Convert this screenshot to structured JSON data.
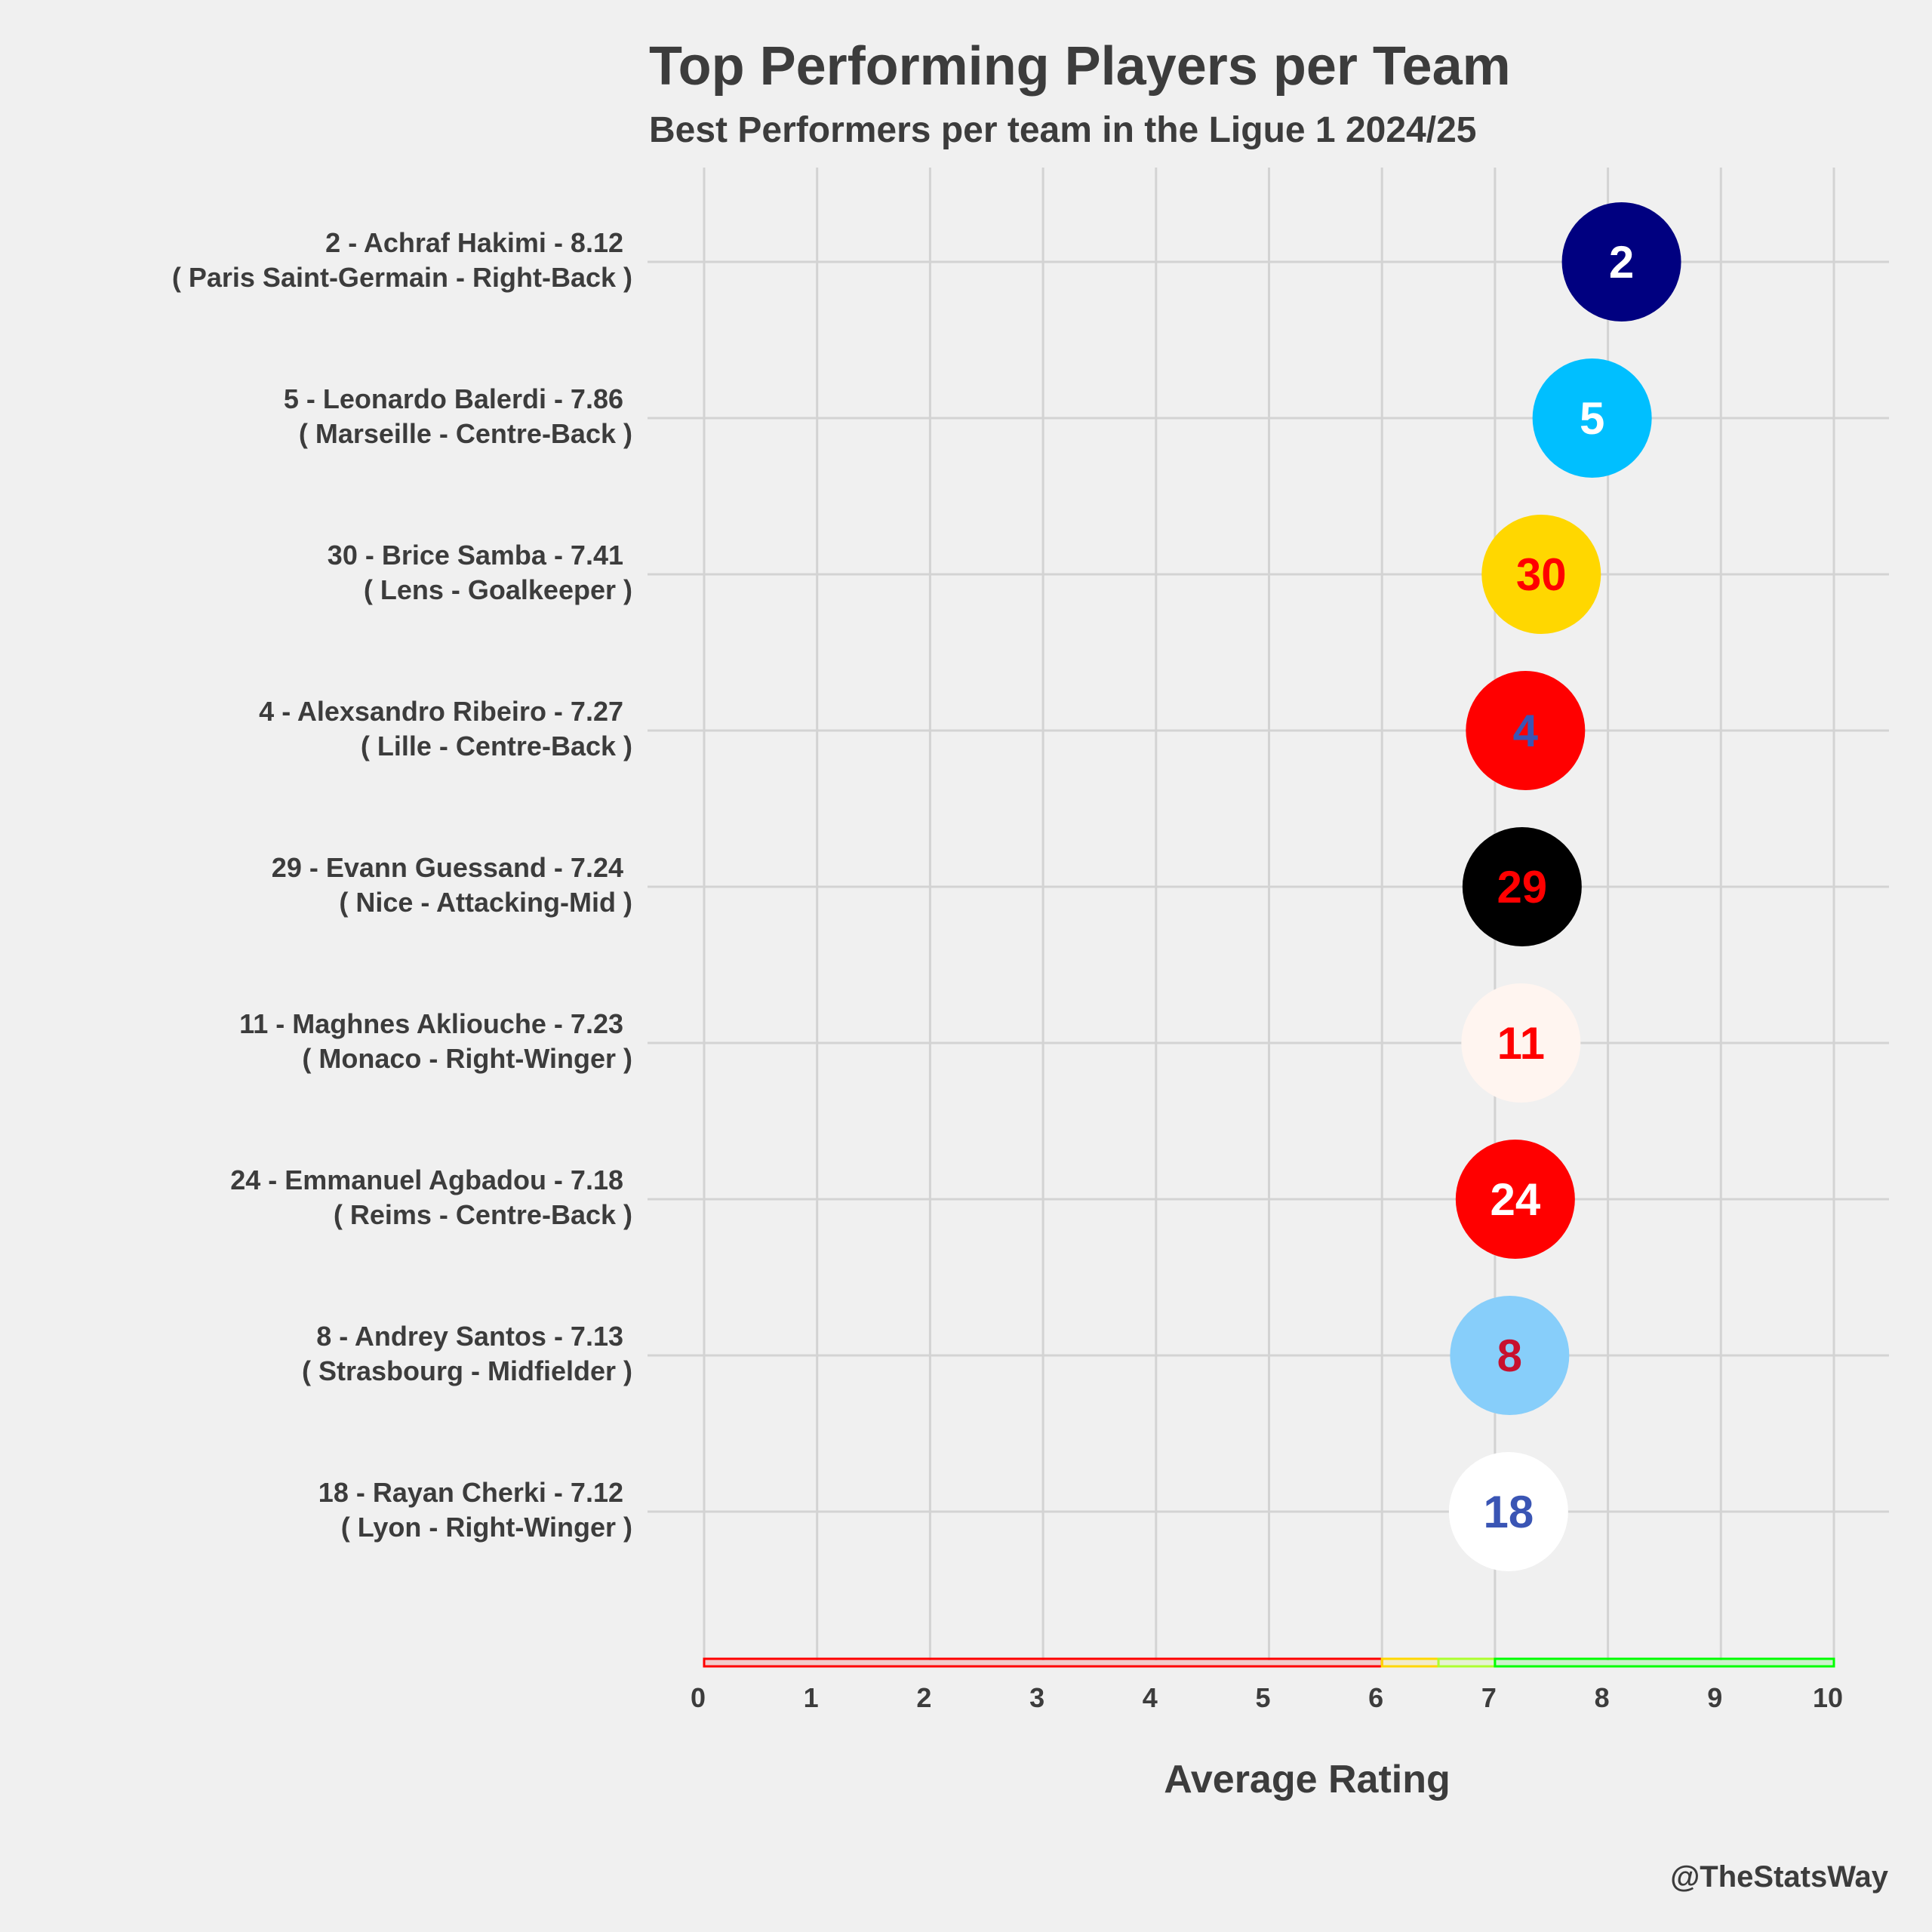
{
  "chart_data": {
    "type": "scatter",
    "title": "Top Performing Players per Team",
    "subtitle": "Best Performers per team in the Ligue 1 2024/25",
    "xlabel": "Average Rating",
    "xlim": [
      0,
      10
    ],
    "xticks": [
      0,
      1,
      2,
      3,
      4,
      5,
      6,
      7,
      8,
      9,
      10
    ],
    "grid": true,
    "credit": "@TheStatsWay",
    "rating_bands": [
      {
        "from": 0,
        "to": 6,
        "color": "#ff0000"
      },
      {
        "from": 6,
        "to": 6.5,
        "color": "#ffd700"
      },
      {
        "from": 6.5,
        "to": 7,
        "color": "#adff2f"
      },
      {
        "from": 7,
        "to": 10,
        "color": "#00ff00"
      }
    ],
    "players": [
      {
        "number": "2",
        "line1": "2 - Achraf Hakimi - 8.12",
        "line2": "( Paris Saint-Germain - Right-Back )",
        "rating": 8.12,
        "fill": "#000080",
        "text_color": "#ffffff"
      },
      {
        "number": "5",
        "line1": "5 - Leonardo Balerdi - 7.86",
        "line2": "( Marseille - Centre-Back )",
        "rating": 7.86,
        "fill": "#00bfff",
        "text_color": "#ffffff"
      },
      {
        "number": "30",
        "line1": "30 - Brice Samba - 7.41",
        "line2": "( Lens - Goalkeeper )",
        "rating": 7.41,
        "fill": "#ffd700",
        "text_color": "#ff0000"
      },
      {
        "number": "4",
        "line1": "4 - Alexsandro Ribeiro - 7.27",
        "line2": "( Lille - Centre-Back )",
        "rating": 7.27,
        "fill": "#ff0000",
        "text_color": "#3a55b4"
      },
      {
        "number": "29",
        "line1": "29 - Evann Guessand - 7.24",
        "line2": "( Nice - Attacking-Mid )",
        "rating": 7.24,
        "fill": "#000000",
        "text_color": "#ff0000"
      },
      {
        "number": "11",
        "line1": "11 - Maghnes Akliouche - 7.23",
        "line2": "( Monaco - Right-Winger )",
        "rating": 7.23,
        "fill": "#fff5f0",
        "text_color": "#ff0000"
      },
      {
        "number": "24",
        "line1": "24 - Emmanuel Agbadou - 7.18",
        "line2": "( Reims - Centre-Back )",
        "rating": 7.18,
        "fill": "#ff0000",
        "text_color": "#ffffff"
      },
      {
        "number": "8",
        "line1": "8 - Andrey Santos - 7.13",
        "line2": "( Strasbourg - Midfielder )",
        "rating": 7.13,
        "fill": "#87cefa",
        "text_color": "#c8102e"
      },
      {
        "number": "18",
        "line1": "18 - Rayan Cherki - 7.12",
        "line2": "( Lyon - Right-Winger )",
        "rating": 7.12,
        "fill": "#ffffff",
        "text_color": "#3a55b4"
      }
    ]
  }
}
